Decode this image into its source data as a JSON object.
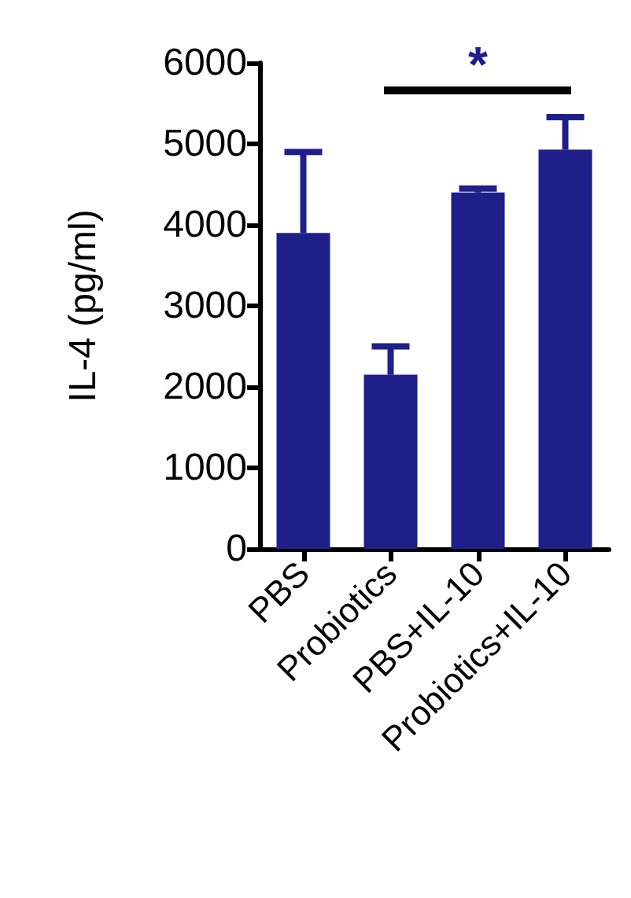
{
  "chart_data": {
    "type": "bar",
    "ylabel": "IL-4 (pg/ml)",
    "categories": [
      "PBS",
      "Probiotics",
      "PBS+IL-10",
      "Probiotics+IL-10"
    ],
    "series": [
      {
        "color": "#1f1f8a",
        "values": [
          3900,
          2150,
          4400,
          4930
        ],
        "errors": [
          [
            3900,
            4900
          ],
          [
            2150,
            2500
          ],
          [
            4400,
            4450
          ],
          [
            4930,
            5330
          ]
        ]
      }
    ],
    "ylim": [
      0,
      6000
    ],
    "yticks": [
      0,
      1000,
      2000,
      3000,
      4000,
      5000,
      6000
    ],
    "grid": false,
    "annotations": [
      "*"
    ]
  }
}
